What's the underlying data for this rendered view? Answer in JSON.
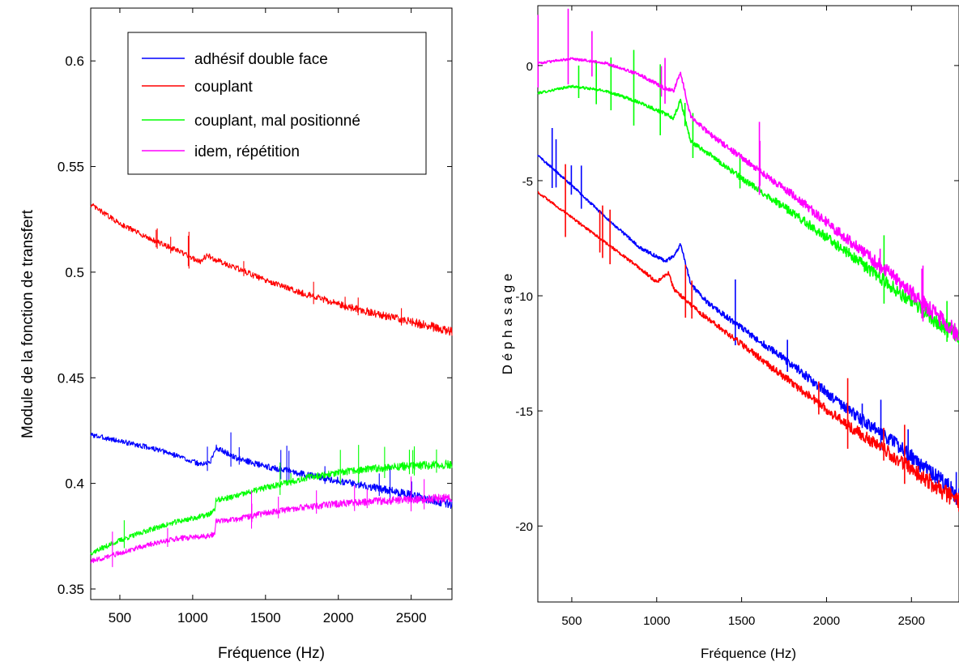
{
  "chart_data": [
    {
      "type": "line",
      "title": "",
      "xlabel": "Fréquence (Hz)",
      "ylabel": "Module de la fonction de transfert",
      "xlim": [
        300,
        2780
      ],
      "ylim": [
        0.345,
        0.625
      ],
      "xticks": [
        "500",
        "1000",
        "1500",
        "2000",
        "2500"
      ],
      "xtick_values": [
        500,
        1000,
        1500,
        2000,
        2500
      ],
      "yticks": [
        "0.35",
        "0.4",
        "0.45",
        "0.5",
        "0.55",
        "0.6"
      ],
      "ytick_values": [
        0.35,
        0.4,
        0.45,
        0.5,
        0.55,
        0.6
      ],
      "grid": false,
      "legend_position": "top-right",
      "series": [
        {
          "name": "adhésif double face",
          "color": "#0000ff",
          "x": [
            300,
            500,
            700,
            900,
            1050,
            1120,
            1160,
            1300,
            1500,
            1800,
            2100,
            2400,
            2780
          ],
          "y": [
            0.423,
            0.42,
            0.417,
            0.413,
            0.409,
            0.41,
            0.417,
            0.412,
            0.408,
            0.404,
            0.4,
            0.396,
            0.39
          ]
        },
        {
          "name": "couplant",
          "color": "#ff0000",
          "x": [
            300,
            500,
            700,
            900,
            1050,
            1100,
            1150,
            1300,
            1500,
            1800,
            2100,
            2400,
            2780
          ],
          "y": [
            0.532,
            0.523,
            0.516,
            0.51,
            0.505,
            0.508,
            0.506,
            0.502,
            0.496,
            0.489,
            0.483,
            0.478,
            0.472
          ]
        },
        {
          "name": "couplant, mal positionné",
          "color": "#00ff00",
          "x": [
            300,
            500,
            700,
            900,
            1100,
            1150,
            1160,
            1300,
            1500,
            1800,
            2100,
            2400,
            2780
          ],
          "y": [
            0.367,
            0.373,
            0.378,
            0.382,
            0.385,
            0.387,
            0.392,
            0.394,
            0.398,
            0.403,
            0.406,
            0.408,
            0.409
          ]
        },
        {
          "name": "idem, répétition",
          "color": "#ff00ff",
          "x": [
            300,
            500,
            700,
            900,
            1100,
            1150,
            1160,
            1300,
            1500,
            1800,
            2100,
            2400,
            2780
          ],
          "y": [
            0.363,
            0.367,
            0.371,
            0.374,
            0.375,
            0.376,
            0.382,
            0.383,
            0.386,
            0.389,
            0.391,
            0.392,
            0.393
          ]
        }
      ]
    },
    {
      "type": "line",
      "title": "",
      "xlabel": "Fréquence (Hz)",
      "ylabel": "D é p h a s a g e",
      "xlim": [
        300,
        2780
      ],
      "ylim": [
        -23.3,
        2.6
      ],
      "xticks": [
        "500",
        "1000",
        "1500",
        "2000",
        "2500"
      ],
      "xtick_values": [
        500,
        1000,
        1500,
        2000,
        2500
      ],
      "yticks": [
        "-20",
        "-15",
        "-10",
        "-5",
        "0"
      ],
      "ytick_values": [
        -20,
        -15,
        -10,
        -5,
        0
      ],
      "grid": false,
      "series": [
        {
          "name": "adhésif double face",
          "color": "#0000ff",
          "x": [
            300,
            500,
            700,
            900,
            1050,
            1110,
            1140,
            1200,
            1300,
            1500,
            1800,
            2100,
            2400,
            2780
          ],
          "y": [
            -3.9,
            -5.2,
            -6.6,
            -7.9,
            -8.5,
            -8.2,
            -7.7,
            -9.5,
            -10.3,
            -11.4,
            -13.0,
            -14.8,
            -16.4,
            -18.7
          ]
        },
        {
          "name": "couplant",
          "color": "#ff0000",
          "x": [
            300,
            500,
            700,
            900,
            1000,
            1070,
            1100,
            1200,
            1300,
            1500,
            1800,
            2100,
            2400,
            2780
          ],
          "y": [
            -5.5,
            -6.6,
            -7.7,
            -8.8,
            -9.4,
            -9.0,
            -9.7,
            -10.4,
            -11.0,
            -12.1,
            -13.8,
            -15.5,
            -17.0,
            -19.0
          ]
        },
        {
          "name": "couplant, mal positionné",
          "color": "#00ff00",
          "x": [
            300,
            500,
            700,
            900,
            1050,
            1100,
            1140,
            1200,
            1300,
            1500,
            1800,
            2100,
            2400,
            2780
          ],
          "y": [
            -1.2,
            -0.9,
            -1.1,
            -1.6,
            -2.1,
            -2.3,
            -1.5,
            -3.3,
            -3.8,
            -4.9,
            -6.4,
            -8.0,
            -9.7,
            -11.8
          ]
        },
        {
          "name": "idem, répétition",
          "color": "#ff00ff",
          "x": [
            300,
            500,
            700,
            900,
            1050,
            1100,
            1140,
            1200,
            1300,
            1500,
            1800,
            2100,
            2400,
            2780
          ],
          "y": [
            0.1,
            0.3,
            0.1,
            -0.4,
            -1.0,
            -1.1,
            -0.3,
            -2.2,
            -2.9,
            -4.0,
            -5.6,
            -7.4,
            -9.2,
            -11.7
          ]
        }
      ]
    }
  ]
}
